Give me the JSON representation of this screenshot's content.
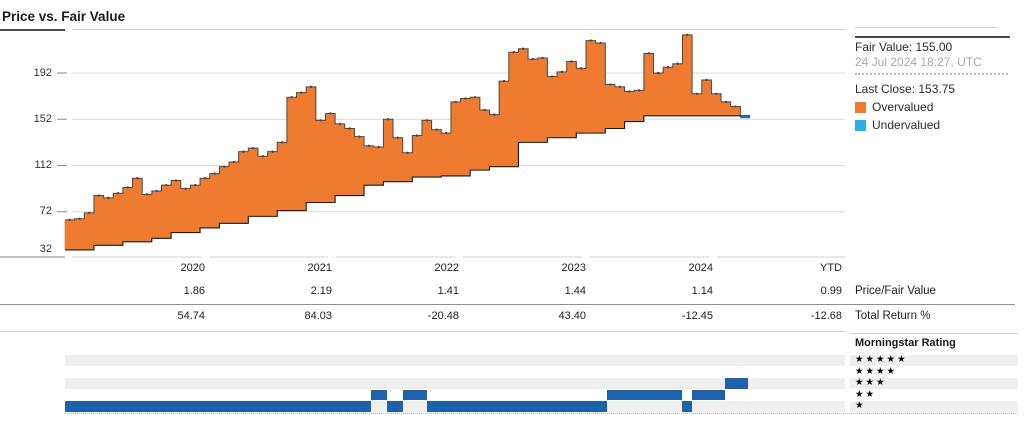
{
  "title": "Price vs. Fair Value",
  "chart_data": {
    "type": "area",
    "title": "Price vs. Fair Value",
    "y_ticks": [
      192,
      152,
      112,
      72,
      32
    ],
    "x_tick_labels": [
      "2020",
      "2021",
      "2022",
      "2023",
      "2024",
      "YTD"
    ],
    "x_start": "2019-07",
    "x_end": "2024-07-24",
    "grid": true,
    "legend_position": "right",
    "fair_value": 155.0,
    "last_close": 153.75,
    "series": [
      {
        "name": "Price (monthly steps)",
        "values": [
          65,
          66,
          71,
          86,
          84,
          88,
          93,
          101,
          87,
          90,
          95,
          99,
          92,
          95,
          101,
          105,
          111,
          115,
          124,
          127,
          120,
          124,
          132,
          171,
          175,
          180,
          151,
          157,
          148,
          144,
          137,
          129,
          128,
          152,
          136,
          123,
          138,
          151,
          143,
          140,
          167,
          170,
          171,
          160,
          156,
          185,
          210,
          213,
          204,
          205,
          189,
          193,
          202,
          196,
          220,
          218,
          182,
          180,
          176,
          177,
          209,
          192,
          197,
          200,
          225,
          174,
          186,
          174,
          167,
          163,
          153.75
        ]
      },
      {
        "name": "Fair Value (steps)",
        "values": [
          39,
          39,
          39,
          43,
          43,
          43,
          46,
          46,
          46,
          49,
          49,
          54,
          54,
          54,
          58,
          58,
          62,
          62,
          62,
          68,
          68,
          68,
          73,
          73,
          73,
          80,
          80,
          80,
          86,
          86,
          86,
          95,
          95,
          98,
          98,
          98,
          102,
          102,
          102,
          103,
          103,
          103,
          108,
          108,
          111,
          111,
          111,
          132,
          132,
          132,
          136,
          136,
          136,
          140,
          140,
          140,
          144,
          144,
          150,
          150,
          155,
          155,
          155,
          155,
          155,
          155,
          155,
          155,
          155,
          155,
          155
        ]
      }
    ]
  },
  "colors": {
    "overvalued": "#ee7b30",
    "undervalued": "#29b0e7",
    "price_line": "#4a4a4a",
    "price_line_end": "#2273b8",
    "fair_value_line": "#1a1a1a",
    "gridline": "#d8d8d8",
    "rating_band_bg": "#efefef",
    "rating_timeline_blue": "#1e62ab",
    "star": "#000000"
  },
  "table": {
    "columns": [
      {
        "label": "2020",
        "price_fair_value": "1.86",
        "total_return": "54.74"
      },
      {
        "label": "2021",
        "price_fair_value": "2.19",
        "total_return": "84.03"
      },
      {
        "label": "2022",
        "price_fair_value": "1.41",
        "total_return": "-20.48"
      },
      {
        "label": "2023",
        "price_fair_value": "1.44",
        "total_return": "43.40"
      },
      {
        "label": "2024",
        "price_fair_value": "1.14",
        "total_return": "-12.45"
      },
      {
        "label": "YTD",
        "price_fair_value": "0.99",
        "total_return": "-12.68"
      }
    ],
    "row_labels": {
      "price_fair_value": "Price/Fair Value",
      "total_return": "Total Return %",
      "rating": "Morningstar Rating"
    }
  },
  "panel": {
    "fair_value_text": "Fair Value: 155.00",
    "timestamp_text": "24 Jul 2024 18:27, UTC",
    "last_close_text": "Last Close: 153.75",
    "legend": [
      {
        "label": "Overvalued",
        "color": "#ee7b30"
      },
      {
        "label": "Undervalued",
        "color": "#29b0e7"
      }
    ]
  },
  "rating": {
    "legend_rows_stars": [
      5,
      4,
      3,
      2,
      1
    ],
    "timeline_segments": [
      {
        "stars": 3,
        "from": 0.8462,
        "to": 0.8756
      },
      {
        "stars": 2,
        "from": 0.3923,
        "to": 0.4128
      },
      {
        "stars": 2,
        "from": 0.4333,
        "to": 0.4641
      },
      {
        "stars": 2,
        "from": 0.6949,
        "to": 0.791
      },
      {
        "stars": 2,
        "from": 0.8038,
        "to": 0.8462
      },
      {
        "stars": 1,
        "from": 0.0,
        "to": 0.3923
      },
      {
        "stars": 1,
        "from": 0.4128,
        "to": 0.4333
      },
      {
        "stars": 1,
        "from": 0.4641,
        "to": 0.6949
      },
      {
        "stars": 1,
        "from": 0.791,
        "to": 0.8038
      }
    ]
  }
}
